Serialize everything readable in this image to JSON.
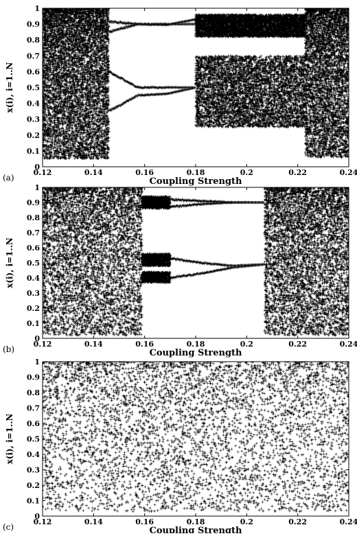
{
  "chart_data": [
    {
      "type": "scatter",
      "panel": "(a)",
      "xlabel": "Coupling Strength",
      "ylabel": "x(i), i=1..N",
      "xlim": [
        0.12,
        0.24
      ],
      "ylim": [
        0,
        1
      ],
      "xticks": [
        "0.12",
        "0.14",
        "0.16",
        "0.18",
        "0.2",
        "0.22",
        "0.24"
      ],
      "yticks": [
        "0",
        "0.1",
        "0.2",
        "0.3",
        "0.4",
        "0.5",
        "0.6",
        "0.7",
        "0.8",
        "0.9",
        "1"
      ],
      "marker": "plus",
      "grid": false,
      "regions": [
        {
          "x": [
            0.12,
            0.146
          ],
          "kind": "chaotic",
          "y": [
            0.05,
            1.0
          ]
        },
        {
          "x": [
            0.146,
            0.18
          ],
          "kind": "branches",
          "branches": [
            [
              0.915,
              0.9,
              0.895,
              0.93
            ],
            [
              0.85,
              0.9,
              0.9,
              0.9
            ],
            [
              0.6,
              0.5,
              0.5,
              0.5
            ],
            [
              0.35,
              0.45,
              0.46,
              0.5
            ]
          ]
        },
        {
          "x": [
            0.18,
            0.223
          ],
          "kind": "bands",
          "bands": [
            [
              0.82,
              0.96
            ],
            [
              0.25,
              0.7
            ]
          ]
        },
        {
          "x": [
            0.223,
            0.24
          ],
          "kind": "chaotic",
          "y": [
            0.06,
            1.0
          ]
        }
      ]
    },
    {
      "type": "scatter",
      "panel": "(b)",
      "xlabel": "Coupling Strength",
      "ylabel": "x(i), i=1..N",
      "xlim": [
        0.12,
        0.24
      ],
      "ylim": [
        0,
        1
      ],
      "xticks": [
        "0.12",
        "0.14",
        "0.16",
        "0.18",
        "0.2",
        "0.22",
        "0.24"
      ],
      "yticks": [
        "0",
        "0.1",
        "0.2",
        "0.3",
        "0.4",
        "0.5",
        "0.6",
        "0.7",
        "0.8",
        "0.9",
        "1"
      ],
      "marker": "plus",
      "grid": false,
      "regions": [
        {
          "x": [
            0.12,
            0.159
          ],
          "kind": "chaotic",
          "y": [
            0.02,
            1.0
          ]
        },
        {
          "x": [
            0.159,
            0.17
          ],
          "kind": "bands",
          "bands": [
            [
              0.86,
              0.94
            ],
            [
              0.48,
              0.56
            ],
            [
              0.37,
              0.44
            ]
          ]
        },
        {
          "x": [
            0.17,
            0.207
          ],
          "kind": "branches",
          "branches": [
            [
              0.92,
              0.91,
              0.9,
              0.9
            ],
            [
              0.87,
              0.89,
              0.9,
              0.9
            ],
            [
              0.53,
              0.5,
              0.48,
              0.49
            ],
            [
              0.4,
              0.43,
              0.47,
              0.49
            ]
          ]
        },
        {
          "x": [
            0.207,
            0.24
          ],
          "kind": "chaotic",
          "y": [
            0.02,
            1.0
          ]
        }
      ]
    },
    {
      "type": "scatter",
      "panel": "(c)",
      "xlabel": "Coupling Strength",
      "ylabel": "x(i), i=1..N",
      "xlim": [
        0.12,
        0.24
      ],
      "ylim": [
        0,
        1
      ],
      "xticks": [
        "0.12",
        "0.14",
        "0.16",
        "0.18",
        "0.2",
        "0.22",
        "0.24"
      ],
      "yticks": [
        "0",
        "0.1",
        "0.2",
        "0.3",
        "0.4",
        "0.5",
        "0.6",
        "0.7",
        "0.8",
        "0.9",
        "1"
      ],
      "marker": "plus",
      "grid": false,
      "regions": [
        {
          "x": [
            0.12,
            0.24
          ],
          "kind": "chaotic",
          "y": [
            0.03,
            1.0
          ]
        }
      ]
    }
  ]
}
